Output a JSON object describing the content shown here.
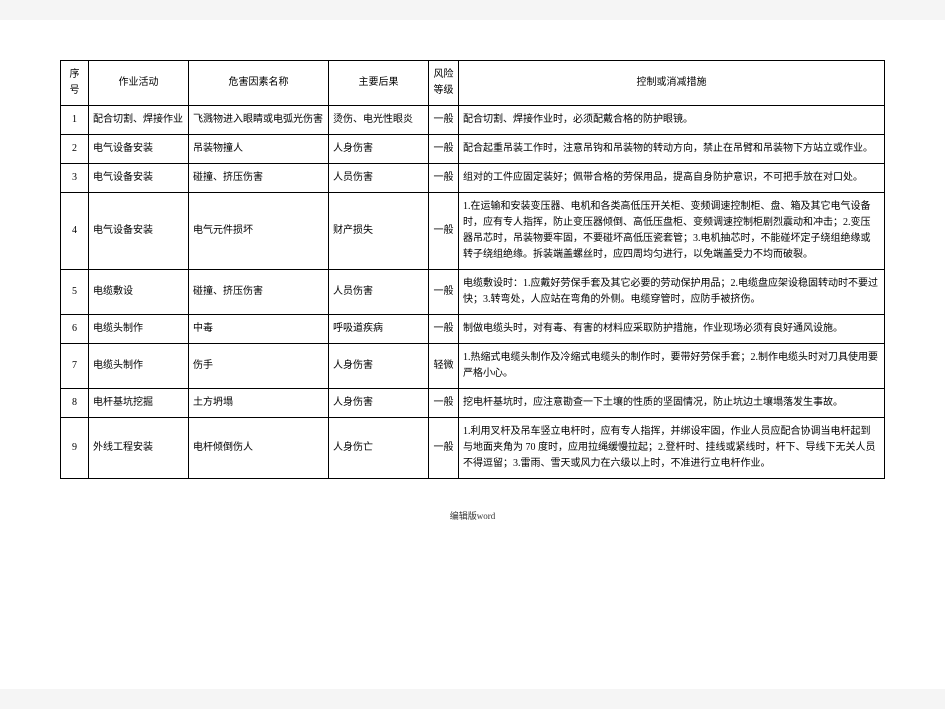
{
  "table": {
    "headers": {
      "seq": "序号",
      "activity": "作业活动",
      "hazard": "危害因素名称",
      "consequence": "主要后果",
      "level": "风险等级",
      "measure": "控制或消减措施"
    },
    "rows": [
      {
        "seq": "1",
        "activity": "配合切割、焊接作业",
        "hazard": "飞溅物进入眼睛或电弧光伤害",
        "consequence": "烫伤、电光性眼炎",
        "level": "一般",
        "measure": "配合切割、焊接作业时，必须配戴合格的防护眼镜。"
      },
      {
        "seq": "2",
        "activity": "电气设备安装",
        "hazard": "吊装物撞人",
        "consequence": "人身伤害",
        "level": "一般",
        "measure": "配合起重吊装工作时，注意吊钩和吊装物的转动方向，禁止在吊臂和吊装物下方站立或作业。"
      },
      {
        "seq": "3",
        "activity": "电气设备安装",
        "hazard": "碰撞、挤压伤害",
        "consequence": "人员伤害",
        "level": "一般",
        "measure": "组对的工件应固定装好；佩带合格的劳保用品，提高自身防护意识，不可把手放在对口处。"
      },
      {
        "seq": "4",
        "activity": "电气设备安装",
        "hazard": "电气元件损坏",
        "consequence": "财产损失",
        "level": "一般",
        "measure": "1.在运输和安装变压器、电机和各类高低压开关柜、变频调速控制柜、盘、箱及其它电气设备时，应有专人指挥，防止变压器倾倒、高低压盘柜、变频调速控制柜剧烈震动和冲击；2.变压器吊芯时，吊装物要牢固，不要碰坏高低压瓷套管；3.电机抽芯时，不能碰坏定子绕组绝缘或转子绕组绝缘。拆装端盖螺丝时，应四周均匀进行，以免端盖受力不均而破裂。"
      },
      {
        "seq": "5",
        "activity": "电缆敷设",
        "hazard": "碰撞、挤压伤害",
        "consequence": "人员伤害",
        "level": "一般",
        "measure": "电缆敷设时：1.应戴好劳保手套及其它必要的劳动保护用品；2.电缆盘应架设稳固转动时不要过快；3.转弯处，人应站在弯角的外侧。电缆穿管时，应防手被挤伤。"
      },
      {
        "seq": "6",
        "activity": "电缆头制作",
        "hazard": "中毒",
        "consequence": "呼吸道疾病",
        "level": "一般",
        "measure": "制做电缆头时，对有毒、有害的材料应采取防护措施，作业现场必须有良好通风设施。"
      },
      {
        "seq": "7",
        "activity": "电缆头制作",
        "hazard": "伤手",
        "consequence": "人身伤害",
        "level": "轻微",
        "measure": "1.热缩式电缆头制作及冷缩式电缆头的制作时，要带好劳保手套；2.制作电缆头时对刀具使用要严格小心。"
      },
      {
        "seq": "8",
        "activity": "电杆基坑挖掘",
        "hazard": "土方坍塌",
        "consequence": "人身伤害",
        "level": "一般",
        "measure": "挖电杆基坑时，应注意勘查一下土壤的性质的坚固情况，防止坑边土壤塌落发生事故。"
      },
      {
        "seq": "9",
        "activity": "外线工程安装",
        "hazard": "电杆倾倒伤人",
        "consequence": "人身伤亡",
        "level": "一般",
        "measure": "1.利用叉杆及吊车竖立电杆时，应有专人指挥，并绑设牢固，作业人员应配合协调当电杆起到与地面夹角为 70 度时，应用拉绳缓慢拉起；2.登杆时、挂线或紧线时，杆下、导线下无关人员不得逗留；3.雷雨、雪天或风力在六级以上时，不准进行立电杆作业。"
      }
    ]
  },
  "footer": "编辑版word"
}
